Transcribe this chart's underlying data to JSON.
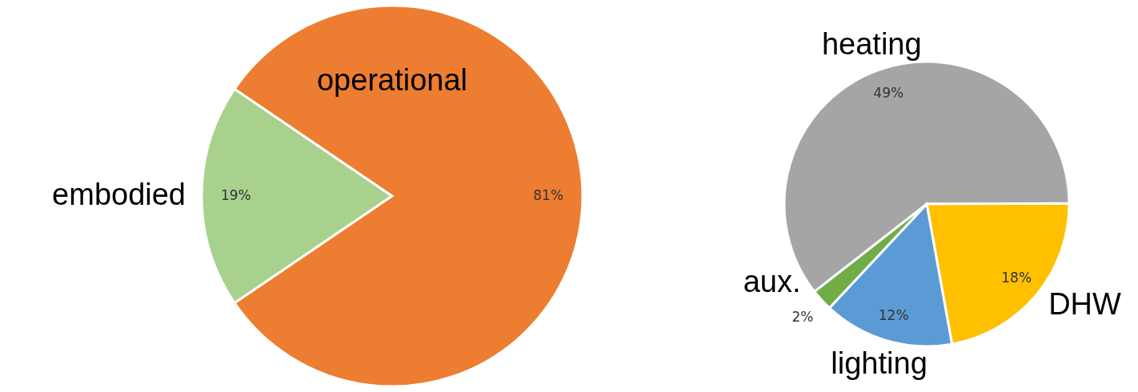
{
  "chart_data": [
    {
      "type": "pie",
      "categories": [
        "embodied",
        "operational"
      ],
      "values": [
        19,
        81
      ],
      "colors": [
        "#a9d18e",
        "#ed7d31"
      ],
      "value_labels": [
        "19%",
        "81%"
      ]
    },
    {
      "type": "pie",
      "categories": [
        "heating",
        "DHW",
        "lighting",
        "aux."
      ],
      "values": [
        49,
        18,
        12,
        2
      ],
      "colors": [
        "#a5a5a5",
        "#ffc000",
        "#5b9bd5",
        "#70ad47"
      ],
      "value_labels": [
        "49%",
        "18%",
        "12%",
        "2%"
      ]
    }
  ]
}
